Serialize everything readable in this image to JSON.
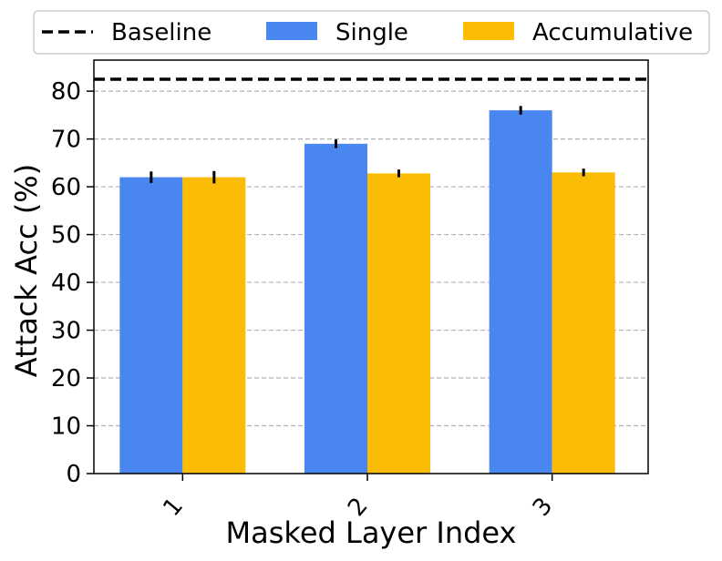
{
  "chart_data": {
    "type": "bar",
    "categories": [
      "1",
      "2",
      "3"
    ],
    "series": [
      {
        "name": "Single",
        "values": [
          62,
          69,
          76
        ],
        "errors": [
          1.2,
          0.9,
          0.9
        ],
        "color": "#4A86F0"
      },
      {
        "name": "Accumulative",
        "values": [
          62,
          62.8,
          63
        ],
        "errors": [
          1.3,
          0.8,
          0.8
        ],
        "color": "#FBBC05"
      }
    ],
    "baseline": {
      "name": "Baseline",
      "value": 82.5,
      "color": "#000000",
      "style": "dashed"
    },
    "xlabel": "Masked Layer Index",
    "ylabel": "Attack Acc (%)",
    "ylim": [
      0,
      86.5
    ],
    "yticks": [
      0,
      10,
      20,
      30,
      40,
      50,
      60,
      70,
      80
    ],
    "grid": "y-dashed",
    "legend_position": "top"
  }
}
